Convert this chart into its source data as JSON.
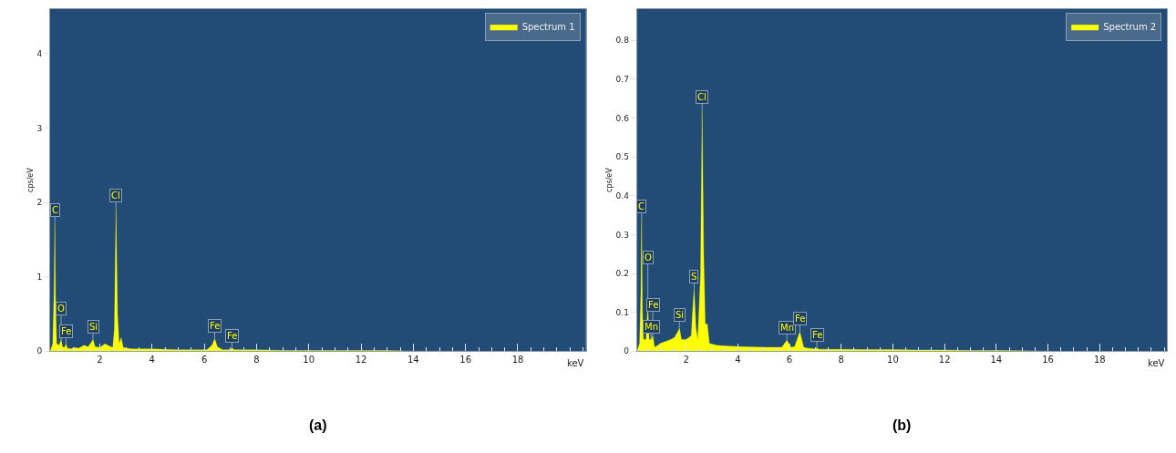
{
  "chart_data": [
    {
      "type": "area",
      "title": "(a)",
      "xlabel": "keV",
      "ylabel": "cps/eV",
      "xlim": [
        0.1,
        20.6
      ],
      "xticks": [
        2,
        4,
        6,
        8,
        10,
        12,
        14,
        16,
        18
      ],
      "ylim": [
        0,
        4.6
      ],
      "yticks": [
        0,
        1,
        2,
        3,
        4
      ],
      "legend": "top right",
      "grid": false,
      "series": [
        {
          "name": "Spectrum 1",
          "color": "#ffff00",
          "x": [
            0.1,
            0.2,
            0.25,
            0.28,
            0.31,
            0.35,
            0.45,
            0.52,
            0.57,
            0.65,
            0.71,
            0.76,
            0.9,
            1.0,
            1.2,
            1.4,
            1.55,
            1.68,
            1.74,
            1.82,
            2.0,
            2.2,
            2.35,
            2.5,
            2.56,
            2.62,
            2.68,
            2.74,
            2.82,
            2.9,
            3.2,
            4,
            5,
            6.1,
            6.3,
            6.4,
            6.5,
            6.7,
            7.0,
            7.06,
            7.15,
            8,
            9,
            10,
            11,
            12,
            13,
            14,
            15,
            16
          ],
          "values": [
            0,
            0.1,
            0.8,
            1.72,
            0.6,
            0.1,
            0.08,
            0.16,
            0.06,
            0.05,
            0.1,
            0.04,
            0.03,
            0.05,
            0.04,
            0.08,
            0.06,
            0.12,
            0.16,
            0.06,
            0.05,
            0.1,
            0.07,
            0.05,
            0.3,
            1.92,
            0.5,
            0.1,
            0.18,
            0.05,
            0.03,
            0.03,
            0.02,
            0.02,
            0.08,
            0.17,
            0.06,
            0.02,
            0.02,
            0.04,
            0.02,
            0.02,
            0.01,
            0.01,
            0.01,
            0.01,
            0.01,
            0,
            0,
            0
          ]
        }
      ],
      "annotations": [
        {
          "text": "C",
          "x": 0.28,
          "y": 1.72
        },
        {
          "text": "O",
          "x": 0.52,
          "y": 0.16
        },
        {
          "text": "Fe",
          "x": 0.71,
          "y": 0.1
        },
        {
          "text": "Si",
          "x": 1.74,
          "y": 0.16
        },
        {
          "text": "Cl",
          "x": 2.62,
          "y": 1.92
        },
        {
          "text": "Fe",
          "x": 6.4,
          "y": 0.17
        },
        {
          "text": "Fe",
          "x": 7.06,
          "y": 0.04
        }
      ]
    },
    {
      "type": "area",
      "title": "(b)",
      "xlabel": "keV",
      "ylabel": "cps/eV",
      "xlim": [
        0.1,
        20.6
      ],
      "xticks": [
        2,
        4,
        6,
        8,
        10,
        12,
        14,
        16,
        18
      ],
      "ylim": [
        0,
        0.88
      ],
      "yticks": [
        0,
        0.1,
        0.2,
        0.3,
        0.4,
        0.5,
        0.6,
        0.7,
        0.8
      ],
      "legend": "top right",
      "grid": false,
      "series": [
        {
          "name": "Spectrum 2",
          "color": "#ffff00",
          "x": [
            0.1,
            0.2,
            0.25,
            0.28,
            0.31,
            0.35,
            0.45,
            0.52,
            0.57,
            0.64,
            0.71,
            0.78,
            0.9,
            1.0,
            1.2,
            1.4,
            1.55,
            1.68,
            1.74,
            1.82,
            2.0,
            2.2,
            2.25,
            2.31,
            2.38,
            2.45,
            2.56,
            2.62,
            2.68,
            2.74,
            2.82,
            2.9,
            3.2,
            4,
            5,
            5.7,
            5.9,
            6.05,
            6.2,
            6.4,
            6.55,
            6.7,
            7.0,
            7.06,
            7.15,
            8,
            9,
            10,
            11,
            12,
            13,
            14,
            15,
            16
          ],
          "values": [
            0,
            0.02,
            0.15,
            0.34,
            0.1,
            0.03,
            0.03,
            0.115,
            0.03,
            0.03,
            0.04,
            0.01,
            0.015,
            0.02,
            0.025,
            0.03,
            0.035,
            0.05,
            0.06,
            0.03,
            0.03,
            0.04,
            0.1,
            0.16,
            0.06,
            0.03,
            0.2,
            0.62,
            0.25,
            0.07,
            0.07,
            0.02,
            0.015,
            0.012,
            0.01,
            0.01,
            0.028,
            0.01,
            0.012,
            0.05,
            0.01,
            0.008,
            0.006,
            0.008,
            0.005,
            0.005,
            0.004,
            0.004,
            0.003,
            0.003,
            0.002,
            0.002,
            0.001,
            0
          ]
        }
      ],
      "annotations": [
        {
          "text": "C",
          "x": 0.28,
          "y": 0.34
        },
        {
          "text": "O",
          "x": 0.52,
          "y": 0.115
        },
        {
          "text": "Fe",
          "x": 0.71,
          "y": 0.04
        },
        {
          "text": "Mn",
          "x": 0.64,
          "y": 0.03
        },
        {
          "text": "Si",
          "x": 1.74,
          "y": 0.06
        },
        {
          "text": "S",
          "x": 2.31,
          "y": 0.16
        },
        {
          "text": "Cl",
          "x": 2.62,
          "y": 0.62
        },
        {
          "text": "Mn",
          "x": 5.9,
          "y": 0.028
        },
        {
          "text": "Fe",
          "x": 6.4,
          "y": 0.05
        },
        {
          "text": "Fe",
          "x": 7.06,
          "y": 0.008
        }
      ]
    }
  ]
}
